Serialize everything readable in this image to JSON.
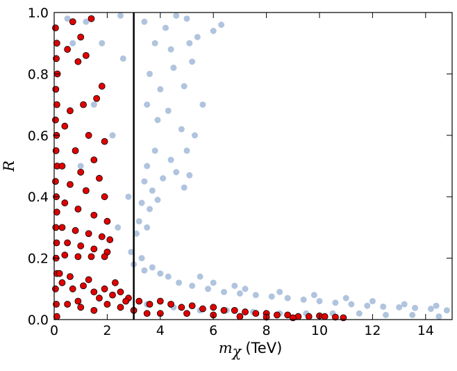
{
  "chart_data": {
    "type": "scatter",
    "xlabel_symbol": "m",
    "xlabel_subscript": "χ",
    "xlabel_unit": "(TeV)",
    "ylabel": "R",
    "xlim": [
      0,
      15
    ],
    "ylim": [
      0,
      1.0
    ],
    "x_ticks": [
      0,
      2,
      4,
      6,
      8,
      10,
      12,
      14
    ],
    "y_ticks": [
      0.0,
      0.2,
      0.4,
      0.6,
      0.8,
      1.0
    ],
    "x_tick_labels": [
      "0",
      "2",
      "4",
      "6",
      "8",
      "10",
      "12",
      "14"
    ],
    "y_tick_labels": [
      "0.0",
      "0.2",
      "0.4",
      "0.6",
      "0.8",
      "1.0"
    ],
    "vertical_line_x": 3.0,
    "grid": false,
    "series": [
      {
        "color": "#b0c4de",
        "points": [
          [
            0.5,
            0.98
          ],
          [
            1.2,
            0.97
          ],
          [
            2.5,
            0.99
          ],
          [
            3.4,
            0.97
          ],
          [
            4.2,
            0.95
          ],
          [
            4.6,
            0.99
          ],
          [
            5.0,
            0.98
          ],
          [
            6.3,
            0.96
          ],
          [
            3.8,
            0.9
          ],
          [
            4.4,
            0.88
          ],
          [
            5.1,
            0.9
          ],
          [
            3.6,
            0.8
          ],
          [
            4.0,
            0.75
          ],
          [
            4.5,
            0.82
          ],
          [
            5.2,
            0.84
          ],
          [
            3.5,
            0.7
          ],
          [
            3.9,
            0.65
          ],
          [
            4.3,
            0.68
          ],
          [
            4.8,
            0.62
          ],
          [
            5.3,
            0.6
          ],
          [
            5.0,
            0.55
          ],
          [
            4.4,
            0.52
          ],
          [
            3.8,
            0.55
          ],
          [
            3.5,
            0.5
          ],
          [
            3.4,
            0.45
          ],
          [
            3.7,
            0.42
          ],
          [
            4.1,
            0.46
          ],
          [
            4.6,
            0.48
          ],
          [
            5.1,
            0.47
          ],
          [
            4.9,
            0.43
          ],
          [
            3.3,
            0.38
          ],
          [
            3.6,
            0.36
          ],
          [
            3.9,
            0.39
          ],
          [
            3.2,
            0.32
          ],
          [
            3.5,
            0.3
          ],
          [
            3.1,
            0.28
          ],
          [
            2.9,
            0.22
          ],
          [
            3.3,
            0.2
          ],
          [
            3.0,
            0.18
          ],
          [
            3.4,
            0.16
          ],
          [
            3.7,
            0.17
          ],
          [
            4.0,
            0.15
          ],
          [
            4.3,
            0.14
          ],
          [
            4.7,
            0.12
          ],
          [
            5.2,
            0.11
          ],
          [
            5.8,
            0.1
          ],
          [
            6.4,
            0.09
          ],
          [
            7.0,
            0.085
          ],
          [
            7.6,
            0.08
          ],
          [
            8.2,
            0.075
          ],
          [
            8.8,
            0.07
          ],
          [
            9.4,
            0.065
          ],
          [
            10.0,
            0.06
          ],
          [
            10.6,
            0.055
          ],
          [
            11.2,
            0.05
          ],
          [
            11.8,
            0.045
          ],
          [
            12.4,
            0.042
          ],
          [
            13.0,
            0.04
          ],
          [
            13.6,
            0.038
          ],
          [
            14.2,
            0.035
          ],
          [
            14.8,
            0.03
          ],
          [
            6.0,
            0.12
          ],
          [
            7.2,
            0.1
          ],
          [
            8.5,
            0.09
          ],
          [
            9.8,
            0.08
          ],
          [
            11.0,
            0.07
          ],
          [
            12.0,
            0.06
          ],
          [
            13.2,
            0.05
          ],
          [
            14.4,
            0.045
          ],
          [
            5.5,
            0.14
          ],
          [
            6.8,
            0.11
          ],
          [
            3.5,
            0.05
          ],
          [
            4.5,
            0.04
          ],
          [
            5.5,
            0.03
          ],
          [
            6.5,
            0.03
          ],
          [
            7.5,
            0.025
          ],
          [
            8.5,
            0.02
          ],
          [
            9.5,
            0.02
          ],
          [
            10.5,
            0.02
          ],
          [
            11.5,
            0.02
          ],
          [
            12.5,
            0.015
          ],
          [
            13.5,
            0.015
          ],
          [
            14.5,
            0.01
          ],
          [
            1.0,
            0.5
          ],
          [
            1.5,
            0.7
          ],
          [
            2.2,
            0.6
          ],
          [
            2.6,
            0.85
          ],
          [
            2.8,
            0.4
          ],
          [
            2.4,
            0.3
          ],
          [
            0.7,
            0.9
          ],
          [
            1.8,
            0.9
          ],
          [
            5.6,
            0.7
          ],
          [
            5.4,
            0.92
          ],
          [
            6.0,
            0.94
          ],
          [
            4.9,
            0.76
          ]
        ]
      },
      {
        "color": "#e00000",
        "points": [
          [
            0.05,
            0.95
          ],
          [
            0.1,
            0.9
          ],
          [
            0.08,
            0.85
          ],
          [
            0.12,
            0.8
          ],
          [
            0.06,
            0.75
          ],
          [
            0.1,
            0.7
          ],
          [
            0.05,
            0.65
          ],
          [
            0.09,
            0.6
          ],
          [
            0.07,
            0.55
          ],
          [
            0.11,
            0.5
          ],
          [
            0.05,
            0.45
          ],
          [
            0.08,
            0.4
          ],
          [
            0.1,
            0.35
          ],
          [
            0.06,
            0.3
          ],
          [
            0.09,
            0.25
          ],
          [
            0.07,
            0.2
          ],
          [
            0.1,
            0.15
          ],
          [
            0.05,
            0.1
          ],
          [
            0.08,
            0.05
          ],
          [
            0.1,
            0.01
          ],
          [
            0.7,
            0.97
          ],
          [
            1.0,
            0.92
          ],
          [
            1.4,
            0.98
          ],
          [
            0.5,
            0.88
          ],
          [
            0.9,
            0.84
          ],
          [
            1.2,
            0.86
          ],
          [
            1.8,
            0.76
          ],
          [
            1.6,
            0.72
          ],
          [
            1.1,
            0.7
          ],
          [
            0.6,
            0.68
          ],
          [
            0.4,
            0.63
          ],
          [
            1.3,
            0.6
          ],
          [
            1.9,
            0.58
          ],
          [
            0.8,
            0.55
          ],
          [
            1.5,
            0.52
          ],
          [
            0.3,
            0.5
          ],
          [
            1.0,
            0.48
          ],
          [
            1.7,
            0.46
          ],
          [
            0.6,
            0.44
          ],
          [
            1.2,
            0.42
          ],
          [
            1.9,
            0.4
          ],
          [
            0.4,
            0.38
          ],
          [
            0.9,
            0.36
          ],
          [
            1.5,
            0.34
          ],
          [
            2.0,
            0.32
          ],
          [
            0.3,
            0.3
          ],
          [
            0.8,
            0.29
          ],
          [
            1.3,
            0.28
          ],
          [
            1.8,
            0.27
          ],
          [
            2.1,
            0.26
          ],
          [
            0.5,
            0.25
          ],
          [
            1.0,
            0.24
          ],
          [
            1.5,
            0.23
          ],
          [
            2.0,
            0.22
          ],
          [
            0.4,
            0.21
          ],
          [
            0.9,
            0.205
          ],
          [
            1.4,
            0.205
          ],
          [
            1.9,
            0.205
          ],
          [
            0.3,
            0.12
          ],
          [
            0.7,
            0.1
          ],
          [
            1.1,
            0.11
          ],
          [
            1.5,
            0.09
          ],
          [
            1.9,
            0.1
          ],
          [
            2.2,
            0.08
          ],
          [
            2.5,
            0.09
          ],
          [
            2.8,
            0.07
          ],
          [
            3.2,
            0.06
          ],
          [
            3.6,
            0.05
          ],
          [
            4.0,
            0.06
          ],
          [
            4.4,
            0.05
          ],
          [
            4.8,
            0.04
          ],
          [
            5.2,
            0.045
          ],
          [
            5.6,
            0.035
          ],
          [
            6.0,
            0.04
          ],
          [
            6.4,
            0.03
          ],
          [
            6.8,
            0.03
          ],
          [
            7.2,
            0.025
          ],
          [
            7.6,
            0.02
          ],
          [
            8.0,
            0.02
          ],
          [
            8.4,
            0.015
          ],
          [
            8.8,
            0.015
          ],
          [
            9.2,
            0.01
          ],
          [
            9.6,
            0.01
          ],
          [
            10.0,
            0.012
          ],
          [
            10.2,
            0.01
          ],
          [
            10.6,
            0.008
          ],
          [
            10.9,
            0.006
          ],
          [
            0.5,
            0.05
          ],
          [
            1.0,
            0.04
          ],
          [
            1.5,
            0.03
          ],
          [
            2.0,
            0.05
          ],
          [
            2.5,
            0.04
          ],
          [
            3.0,
            0.03
          ],
          [
            3.5,
            0.02
          ],
          [
            4.0,
            0.02
          ],
          [
            5.0,
            0.02
          ],
          [
            6.0,
            0.015
          ],
          [
            7.0,
            0.01
          ],
          [
            8.0,
            0.008
          ],
          [
            9.0,
            0.006
          ],
          [
            0.2,
            0.15
          ],
          [
            0.6,
            0.14
          ],
          [
            1.3,
            0.13
          ],
          [
            2.3,
            0.12
          ],
          [
            0.9,
            0.06
          ],
          [
            1.7,
            0.07
          ],
          [
            2.7,
            0.06
          ]
        ]
      }
    ]
  }
}
